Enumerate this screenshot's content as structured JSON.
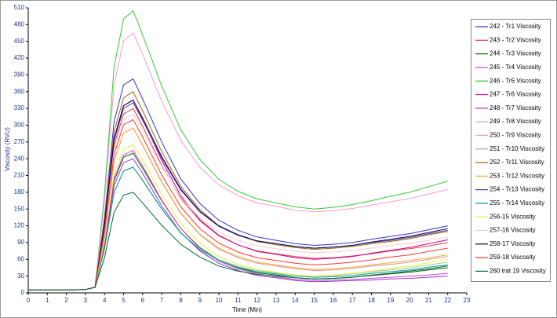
{
  "chart_data": {
    "type": "line",
    "x_label": "Time (Min)",
    "y_label": "Viscosity (RVU)",
    "xlim": [
      0,
      23
    ],
    "ylim": [
      0,
      510
    ],
    "xticks": [
      0,
      1,
      2,
      3,
      4,
      5,
      6,
      7,
      8,
      9,
      10,
      11,
      12,
      13,
      14,
      15,
      16,
      17,
      18,
      19,
      20,
      21,
      22,
      23
    ],
    "yticks": [
      0,
      30,
      60,
      90,
      120,
      150,
      180,
      210,
      240,
      270,
      300,
      330,
      360,
      390,
      420,
      450,
      480,
      510
    ],
    "x": [
      0,
      1,
      2,
      3,
      3.5,
      4,
      4.5,
      5,
      5.5,
      6,
      7,
      8,
      9,
      10,
      11,
      12,
      13,
      14,
      15,
      16,
      17,
      18,
      19,
      20,
      21,
      22
    ],
    "series": [
      {
        "name": "242 - Tr1 Viscosity",
        "color": "#3333cc",
        "values": [
          5,
          5,
          5,
          6,
          10,
          134,
          306,
          372,
          383,
          347,
          270,
          204,
          160,
          130,
          112,
          100,
          94,
          88,
          85,
          87,
          90,
          96,
          101,
          106,
          113,
          120
        ]
      },
      {
        "name": "243 - Tr2 Viscosity",
        "color": "#e04040",
        "values": [
          5,
          5,
          5,
          6,
          10,
          116,
          264,
          320,
          330,
          298,
          228,
          169,
          129,
          102,
          86,
          75,
          70,
          65,
          62,
          63,
          66,
          70,
          75,
          79,
          84,
          90
        ]
      },
      {
        "name": "244 - Tr3 Viscosity",
        "color": "#006600",
        "values": [
          5,
          5,
          5,
          6,
          10,
          88,
          200,
          243,
          250,
          223,
          165,
          115,
          81,
          59,
          45,
          36,
          32,
          27,
          25,
          26,
          28,
          31,
          34,
          37,
          41,
          45
        ]
      },
      {
        "name": "245 - Tr4 Viscosity",
        "color": "#cc44cc",
        "values": [
          5,
          5,
          5,
          6,
          10,
          89,
          204,
          247,
          255,
          227,
          166,
          115,
          80,
          57,
          43,
          34,
          29,
          24,
          22,
          23,
          24,
          26,
          28,
          30,
          32,
          35
        ]
      },
      {
        "name": "246 - Tr5 Viscosity",
        "color": "#33cc33",
        "values": [
          5,
          5,
          5,
          6,
          10,
          177,
          404,
          490,
          505,
          462,
          370,
          292,
          239,
          203,
          182,
          168,
          161,
          154,
          150,
          153,
          158,
          165,
          173,
          180,
          190,
          200
        ]
      },
      {
        "name": "247 - Tr6 Viscosity",
        "color": "#cc0099",
        "values": [
          5,
          5,
          5,
          6,
          10,
          121,
          276,
          335,
          345,
          311,
          237,
          174,
          131,
          103,
          86,
          74,
          69,
          63,
          60,
          62,
          65,
          71,
          76,
          81,
          88,
          95
        ]
      },
      {
        "name": "248 - Tr7 Viscosity",
        "color": "#9933cc",
        "values": [
          5,
          5,
          5,
          6,
          10,
          84,
          192,
          233,
          240,
          214,
          156,
          108,
          75,
          53,
          40,
          31,
          27,
          22,
          20,
          21,
          22,
          23,
          25,
          26,
          28,
          30
        ]
      },
      {
        "name": "249 - Tr8 Viscosity",
        "color": "#99cc99",
        "values": [
          5,
          5,
          5,
          6,
          10,
          79,
          180,
          218,
          225,
          202,
          151,
          108,
          79,
          59,
          48,
          40,
          36,
          32,
          30,
          31,
          34,
          38,
          41,
          45,
          50,
          55
        ]
      },
      {
        "name": "250 - Tr9 Viscosity",
        "color": "#ff99cc",
        "values": [
          5,
          5,
          5,
          6,
          10,
          163,
          372,
          451,
          465,
          427,
          343,
          273,
          225,
          193,
          174,
          161,
          155,
          148,
          145,
          147,
          151,
          157,
          163,
          169,
          177,
          185
        ]
      },
      {
        "name": "251 - Tr10 Viscosity",
        "color": "#cc9999",
        "values": [
          5,
          5,
          5,
          6,
          10,
          103,
          236,
          286,
          295,
          264,
          198,
          142,
          104,
          78,
          63,
          53,
          48,
          43,
          40,
          41,
          44,
          48,
          51,
          55,
          60,
          65
        ]
      },
      {
        "name": "252 - Tr11 Viscosity",
        "color": "#996600",
        "values": [
          5,
          5,
          5,
          6,
          10,
          126,
          288,
          349,
          360,
          326,
          253,
          191,
          149,
          120,
          103,
          92,
          86,
          81,
          78,
          80,
          83,
          88,
          92,
          97,
          104,
          110
        ]
      },
      {
        "name": "253 - Tr12 Viscosity",
        "color": "#ffaa33",
        "values": [
          5,
          5,
          5,
          6,
          10,
          103,
          236,
          286,
          295,
          265,
          199,
          143,
          105,
          80,
          65,
          55,
          50,
          45,
          42,
          43,
          46,
          50,
          54,
          58,
          63,
          68
        ]
      },
      {
        "name": "254 - Tr13 Viscosity",
        "color": "#663399",
        "values": [
          5,
          5,
          5,
          6,
          10,
          119,
          272,
          330,
          340,
          309,
          241,
          184,
          145,
          119,
          103,
          93,
          88,
          83,
          80,
          82,
          85,
          90,
          94,
          99,
          106,
          112
        ]
      },
      {
        "name": "255 - Tr14 Viscosity",
        "color": "#009999",
        "values": [
          5,
          5,
          5,
          6,
          10,
          79,
          180,
          218,
          225,
          201,
          150,
          107,
          77,
          58,
          46,
          38,
          34,
          30,
          28,
          29,
          31,
          35,
          38,
          41,
          46,
          50
        ]
      },
      {
        "name": "256-15 Viscosity",
        "color": "#eeee44",
        "values": [
          5,
          5,
          5,
          6,
          10,
          93,
          212,
          257,
          265,
          237,
          176,
          124,
          89,
          65,
          51,
          42,
          37,
          32,
          30,
          32,
          35,
          39,
          44,
          48,
          54,
          60
        ]
      },
      {
        "name": "257-16 Viscosity",
        "color": "#ffcccc",
        "values": [
          5,
          5,
          5,
          6,
          10,
          112,
          256,
          310,
          320,
          290,
          226,
          171,
          134,
          109,
          94,
          84,
          79,
          74,
          72,
          73,
          76,
          80,
          85,
          89,
          94,
          100
        ]
      },
      {
        "name": "258-17 Viscosity",
        "color": "#000066",
        "values": [
          5,
          5,
          5,
          6,
          10,
          121,
          276,
          335,
          345,
          313,
          244,
          186,
          146,
          120,
          104,
          93,
          88,
          83,
          80,
          82,
          85,
          91,
          96,
          101,
          108,
          115
        ]
      },
      {
        "name": "259-18 Viscosity",
        "color": "#ff3333",
        "values": [
          5,
          5,
          5,
          6,
          10,
          109,
          248,
          301,
          310,
          279,
          211,
          154,
          115,
          89,
          73,
          63,
          58,
          53,
          50,
          52,
          55,
          59,
          64,
          68,
          74,
          80
        ]
      },
      {
        "name": "260 trat 19 Viscosity",
        "color": "#006633",
        "values": [
          5,
          5,
          5,
          6,
          10,
          63,
          144,
          175,
          180,
          161,
          121,
          87,
          64,
          48,
          39,
          33,
          30,
          27,
          25,
          26,
          28,
          32,
          35,
          39,
          43,
          48
        ]
      }
    ]
  }
}
